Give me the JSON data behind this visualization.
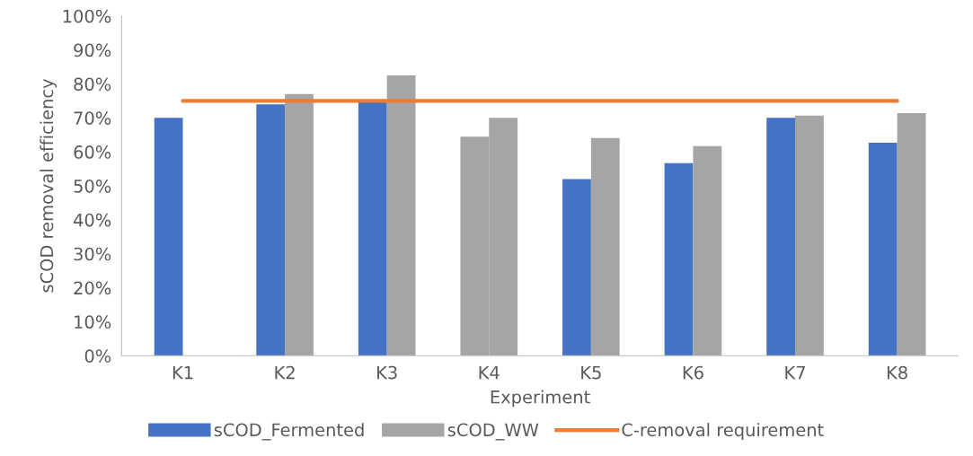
{
  "chart_data": {
    "type": "bar",
    "xlabel": "Experiment",
    "ylabel": "sCOD removal efficiency",
    "categories": [
      "K1",
      "K2",
      "K3",
      "K4",
      "K5",
      "K6",
      "K7",
      "K8"
    ],
    "series": [
      {
        "name": "sCOD_Fermented",
        "color": "#4472c4",
        "colors": [
          "#4472c4",
          "#4472c4",
          "#4472c4",
          "#a5a5a5",
          "#4472c4",
          "#4472c4",
          "#4472c4",
          "#4472c4"
        ],
        "values": [
          70,
          74,
          75,
          64.5,
          52,
          56.7,
          70,
          62.7
        ]
      },
      {
        "name": "sCOD_WW",
        "color": "#a5a5a5",
        "values": [
          null,
          77,
          82.5,
          70,
          64.1,
          61.7,
          70.7,
          71.4
        ]
      },
      {
        "name": "C-removal requirement",
        "type": "line",
        "color": "#ed7d31",
        "values": [
          75,
          75,
          75,
          75,
          75,
          75,
          75,
          75
        ]
      }
    ],
    "ylim": [
      0,
      100
    ],
    "yticks": [
      {
        "value": 0,
        "label": "0%"
      },
      {
        "value": 10,
        "label": "10%"
      },
      {
        "value": 20,
        "label": "20%"
      },
      {
        "value": 30,
        "label": "30%"
      },
      {
        "value": 40,
        "label": "40%"
      },
      {
        "value": 50,
        "label": "50%"
      },
      {
        "value": 60,
        "label": "60%"
      },
      {
        "value": 70,
        "label": "70%"
      },
      {
        "value": 80,
        "label": "80%"
      },
      {
        "value": 90,
        "label": "90%"
      },
      {
        "value": 100,
        "label": "100%"
      }
    ],
    "legend": "bottom",
    "marker": "none",
    "line_style": "solid"
  }
}
